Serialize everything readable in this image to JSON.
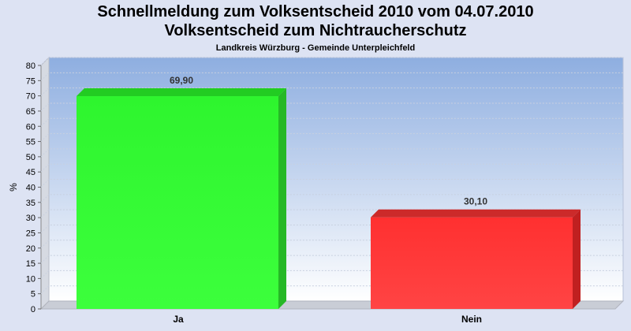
{
  "titles": {
    "line1": "Schnellmeldung zum Volksentscheid 2010 vom 04.07.2010",
    "line2": "Volksentscheid zum Nichtraucherschutz",
    "line3": "Landkreis Würzburg - Gemeinde Unterpleichfeld"
  },
  "colors": {
    "page_bg": "#dde3f3",
    "plot_bg_top": "#8eaee0",
    "plot_bg_bottom": "#ffffff",
    "bar_ja": "#33ff33",
    "bar_nein": "#ff3333",
    "tick_text": "#000000"
  },
  "chart_data": {
    "type": "bar",
    "title": "Schnellmeldung zum Volksentscheid 2010 vom 04.07.2010",
    "subtitle": "Volksentscheid zum Nichtraucherschutz",
    "caption": "Landkreis Würzburg - Gemeinde Unterpleichfeld",
    "categories": [
      "Ja",
      "Nein"
    ],
    "values": [
      69.9,
      30.1
    ],
    "value_labels": [
      "69,90",
      "30,10"
    ],
    "bar_colors": [
      "#33ff33",
      "#ff3333"
    ],
    "xlabel": "",
    "ylabel": "%",
    "ylim": [
      0,
      80
    ],
    "yticks": [
      0,
      5,
      10,
      15,
      20,
      25,
      30,
      35,
      40,
      45,
      50,
      55,
      60,
      65,
      70,
      75,
      80
    ],
    "grid": true,
    "legend": "none"
  }
}
